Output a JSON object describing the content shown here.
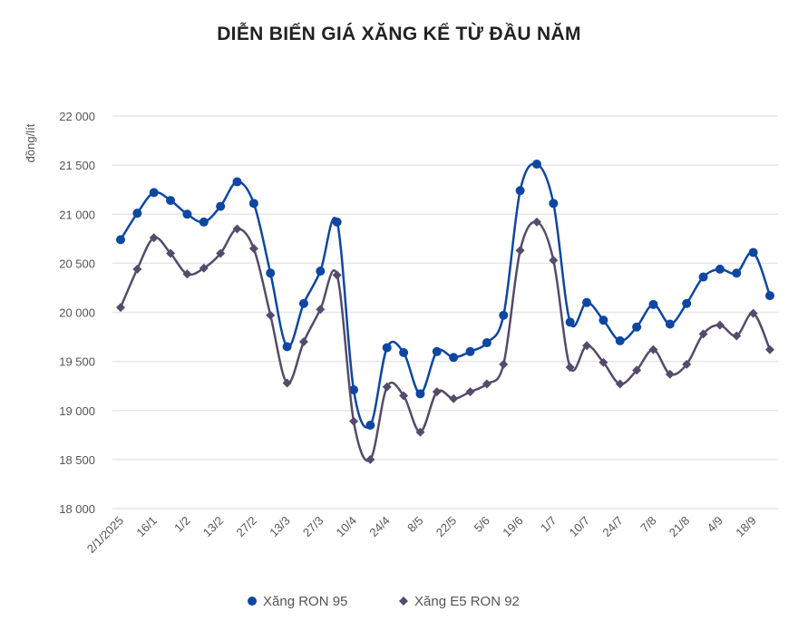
{
  "chart_data": {
    "type": "line",
    "title": "DIỄN BIẾN GIÁ XĂNG KỂ TỪ ĐẦU NĂM",
    "ylabel": "đồng/lít",
    "xlabel": "",
    "ylim": [
      18000,
      22000
    ],
    "yticks": [
      18000,
      18500,
      19000,
      19500,
      20000,
      20500,
      21000,
      21500,
      22000
    ],
    "ytick_labels": [
      "18 000",
      "18 500",
      "19 000",
      "19 500",
      "20 000",
      "20 500",
      "21 000",
      "21 500",
      "22 000"
    ],
    "xtick_labels": [
      "2/1/2025",
      "16/1",
      "1/2",
      "13/2",
      "27/2",
      "13/3",
      "27/3",
      "10/4",
      "24/4",
      "8/5",
      "22/5",
      "5/6",
      "19/6",
      "1/7",
      "10/7",
      "24/7",
      "7/8",
      "21/8",
      "4/9",
      "18/9"
    ],
    "grid": true,
    "legend_position": "bottom",
    "series": [
      {
        "name": "Xăng RON 95",
        "color": "#0e47a1",
        "marker": "circle",
        "values": [
          20740,
          21010,
          21220,
          21140,
          21000,
          20920,
          21080,
          21330,
          21110,
          20400,
          19650,
          20090,
          20420,
          20920,
          19210,
          18850,
          19640,
          19590,
          19170,
          19600,
          19540,
          19600,
          19690,
          19970,
          21240,
          21510,
          21110,
          19900,
          20100,
          19920,
          19710,
          19850,
          20080,
          19880,
          20090,
          20360,
          20440,
          20400,
          20610,
          20170
        ]
      },
      {
        "name": "Xăng E5 RON 92",
        "color": "#554b6c",
        "marker": "diamond",
        "values": [
          20050,
          20440,
          20760,
          20600,
          20390,
          20450,
          20600,
          20850,
          20650,
          19970,
          19280,
          19700,
          20030,
          20380,
          18890,
          18500,
          19240,
          19150,
          18780,
          19190,
          19120,
          19190,
          19270,
          19470,
          20630,
          20920,
          20530,
          19440,
          19660,
          19490,
          19270,
          19410,
          19620,
          19370,
          19470,
          19780,
          19870,
          19760,
          19990,
          19620
        ]
      }
    ]
  }
}
